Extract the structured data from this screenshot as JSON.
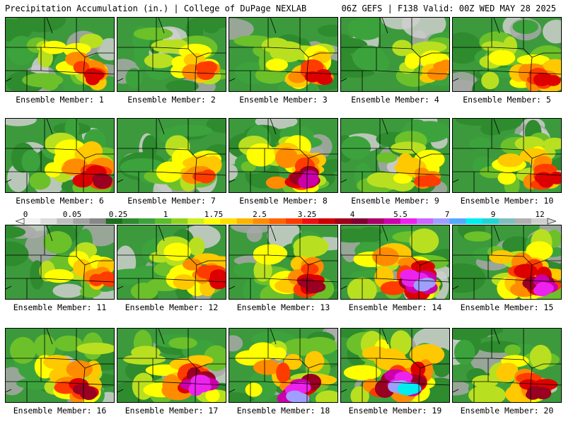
{
  "header": {
    "left": "Precipitation Accumulation (in.) | College of DuPage NEXLAB",
    "right": "06Z GEFS | F138 Valid: 00Z WED MAY 28 2025"
  },
  "members": [
    {
      "label": "Ensemble Member: 1",
      "intensity": 0.55,
      "hot": [
        0.85,
        0.78
      ]
    },
    {
      "label": "Ensemble Member: 2",
      "intensity": 0.45,
      "hot": [
        0.85,
        0.72
      ]
    },
    {
      "label": "Ensemble Member: 3",
      "intensity": 0.55,
      "hot": [
        0.82,
        0.78
      ]
    },
    {
      "label": "Ensemble Member: 4",
      "intensity": 0.4,
      "hot": [
        0.93,
        0.72
      ]
    },
    {
      "label": "Ensemble Member: 5",
      "intensity": 0.5,
      "hot": [
        0.88,
        0.85
      ]
    },
    {
      "label": "Ensemble Member: 6",
      "intensity": 0.6,
      "hot": [
        0.85,
        0.82
      ]
    },
    {
      "label": "Ensemble Member: 7",
      "intensity": 0.45,
      "hot": [
        0.82,
        0.78
      ]
    },
    {
      "label": "Ensemble Member: 8",
      "intensity": 0.7,
      "hot": [
        0.72,
        0.85
      ]
    },
    {
      "label": "Ensemble Member: 9",
      "intensity": 0.45,
      "hot": [
        0.8,
        0.85
      ]
    },
    {
      "label": "Ensemble Member: 10",
      "intensity": 0.5,
      "hot": [
        0.9,
        0.82
      ]
    },
    {
      "label": "Ensemble Member: 11",
      "intensity": 0.45,
      "hot": [
        0.9,
        0.75
      ]
    },
    {
      "label": "Ensemble Member: 12",
      "intensity": 0.55,
      "hot": [
        0.88,
        0.72
      ]
    },
    {
      "label": "Ensemble Member: 13",
      "intensity": 0.65,
      "hot": [
        0.78,
        0.82
      ]
    },
    {
      "label": "Ensemble Member: 14",
      "intensity": 0.85,
      "hot": [
        0.75,
        0.8
      ]
    },
    {
      "label": "Ensemble Member: 15",
      "intensity": 0.8,
      "hot": [
        0.85,
        0.85
      ]
    },
    {
      "label": "Ensemble Member: 16",
      "intensity": 0.6,
      "hot": [
        0.72,
        0.85
      ]
    },
    {
      "label": "Ensemble Member: 17",
      "intensity": 0.75,
      "hot": [
        0.78,
        0.78
      ]
    },
    {
      "label": "Ensemble Member: 18",
      "intensity": 0.85,
      "hot": [
        0.65,
        0.92
      ]
    },
    {
      "label": "Ensemble Member: 19",
      "intensity": 0.9,
      "hot": [
        0.6,
        0.78
      ]
    },
    {
      "label": "Ensemble Member: 20",
      "intensity": 0.65,
      "hot": [
        0.8,
        0.85
      ]
    }
  ],
  "scale": {
    "labels": [
      "0",
      "0.05",
      "0.25",
      "1",
      "1.75",
      "2.5",
      "3.25",
      "4",
      "5.5",
      "7",
      "9",
      "12"
    ],
    "colors": [
      "#f2f2f2",
      "#dcdcdc",
      "#bfbfbf",
      "#a3a3a3",
      "#888888",
      "#1e6e1e",
      "#2e8b2e",
      "#3ca33c",
      "#5cbc2c",
      "#8fd21e",
      "#ccee22",
      "#ffff00",
      "#ffde00",
      "#ffb400",
      "#ff8c00",
      "#ff6400",
      "#ff3c00",
      "#ee1010",
      "#cc0000",
      "#a00018",
      "#800030",
      "#aa0066",
      "#cc00aa",
      "#ee22ee",
      "#cc66ff",
      "#9f9fff",
      "#55aaff",
      "#00eeee",
      "#22d4d4",
      "#7fbfbf",
      "#b0b0b0",
      "#cfcfcf"
    ]
  }
}
